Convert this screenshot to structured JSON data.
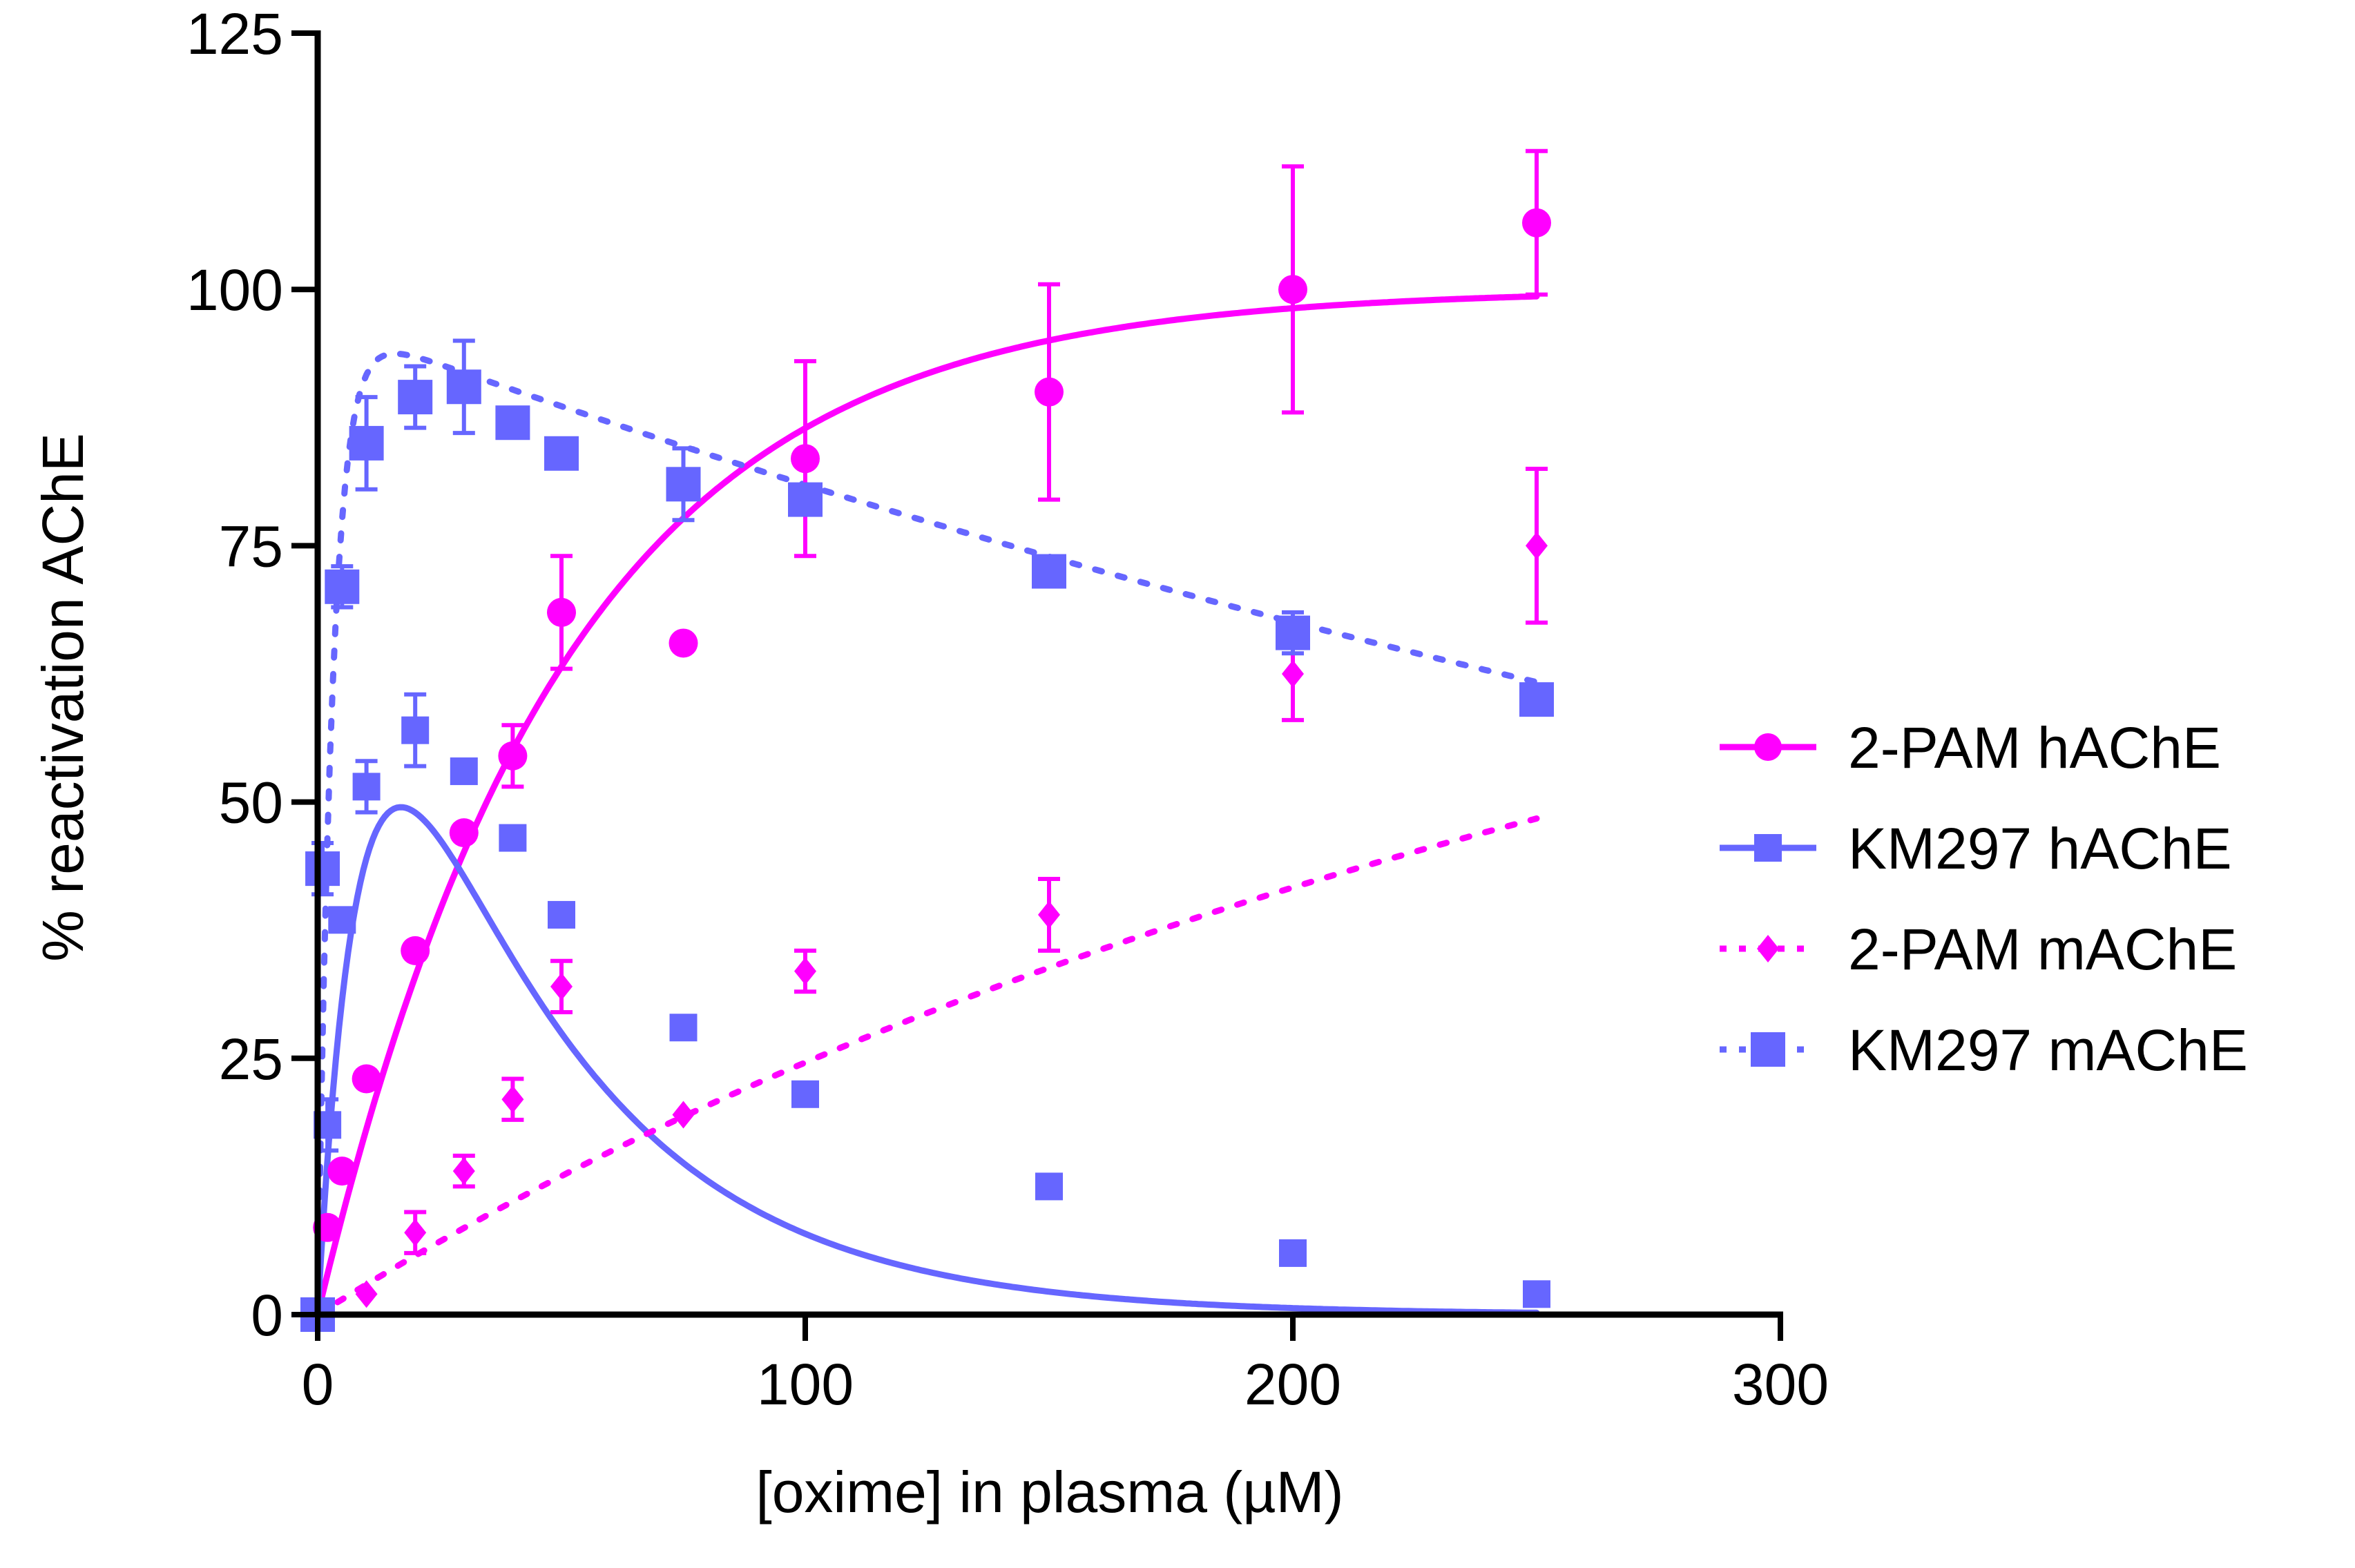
{
  "chart_data": {
    "type": "scatter",
    "title": "",
    "xlabel": "[oxime] in plasma (µM)",
    "ylabel": "% reactivation AChE",
    "xlim": [
      0,
      300
    ],
    "ylim": [
      0,
      125
    ],
    "xticks": [
      0,
      100,
      200,
      300
    ],
    "yticks": [
      0,
      25,
      50,
      75,
      100,
      125
    ],
    "grid": false,
    "legend_position": "right",
    "colors": {
      "magenta": "#ff00ff",
      "blue": "#6666ff"
    },
    "series": [
      {
        "name": "2-PAM hAChE",
        "marker": "circle",
        "line": "solid",
        "color": "#ff00ff",
        "points": [
          {
            "x": 0,
            "y": 0
          },
          {
            "x": 2,
            "y": 8.5
          },
          {
            "x": 5,
            "y": 14
          },
          {
            "x": 10,
            "y": 23
          },
          {
            "x": 20,
            "y": 35.5
          },
          {
            "x": 30,
            "y": 47
          },
          {
            "x": 40,
            "y": 54.5,
            "err": 3
          },
          {
            "x": 50,
            "y": 68.5,
            "err": 5.5
          },
          {
            "x": 75,
            "y": 65.5
          },
          {
            "x": 100,
            "y": 83.5,
            "err": 9.5
          },
          {
            "x": 150,
            "y": 90,
            "err": 10.5
          },
          {
            "x": 200,
            "y": 100,
            "err": 12
          },
          {
            "x": 250,
            "y": 106.5,
            "err": 7
          }
        ],
        "fit": {
          "model": "saturation",
          "ymax": 100,
          "k": 0.02,
          "xmin": 0,
          "xmax": 250
        }
      },
      {
        "name": "KM297 hAChE",
        "marker": "square",
        "line": "solid",
        "color": "#6666ff",
        "points": [
          {
            "x": 0,
            "y": 0
          },
          {
            "x": 1,
            "y": 43.5
          },
          {
            "x": 2,
            "y": 18.5,
            "err": 2.5
          },
          {
            "x": 5,
            "y": 38.5
          },
          {
            "x": 10,
            "y": 51.5,
            "err": 2.5
          },
          {
            "x": 20,
            "y": 57,
            "err": 3.5
          },
          {
            "x": 30,
            "y": 53
          },
          {
            "x": 40,
            "y": 46.5
          },
          {
            "x": 50,
            "y": 39
          },
          {
            "x": 75,
            "y": 28
          },
          {
            "x": 100,
            "y": 21.5
          },
          {
            "x": 150,
            "y": 12.5
          },
          {
            "x": 200,
            "y": 6
          },
          {
            "x": 250,
            "y": 2
          }
        ],
        "fit": {
          "model": "rise-decay",
          "amp": 98,
          "kd": 0.0252,
          "ka": 0.113,
          "xmin": 0,
          "xmax": 250
        }
      },
      {
        "name": "2-PAM mAChE",
        "marker": "diamond",
        "line": "dotted",
        "color": "#ff00ff",
        "points": [
          {
            "x": 0,
            "y": 0
          },
          {
            "x": 10,
            "y": 2
          },
          {
            "x": 20,
            "y": 8,
            "err": 2
          },
          {
            "x": 30,
            "y": 14,
            "err": 1.5
          },
          {
            "x": 40,
            "y": 21,
            "err": 2
          },
          {
            "x": 50,
            "y": 32,
            "err": 2.5
          },
          {
            "x": 75,
            "y": 19.5
          },
          {
            "x": 100,
            "y": 33.5,
            "err": 2
          },
          {
            "x": 150,
            "y": 39,
            "err": 3.5
          },
          {
            "x": 200,
            "y": 62.5,
            "err": 4.5
          },
          {
            "x": 250,
            "y": 75,
            "err": 7.5
          }
        ],
        "fit": {
          "model": "linear-sat",
          "a": 0.3,
          "b": 0.0022,
          "xmin": 0,
          "xmax": 250
        }
      },
      {
        "name": "KM297 mAChE",
        "marker": "square",
        "line": "dotted",
        "color": "#6666ff",
        "points": [
          {
            "x": 0,
            "y": 0
          },
          {
            "x": 1,
            "y": 43.5,
            "err": 2.5
          },
          {
            "x": 5,
            "y": 71,
            "err": 2
          },
          {
            "x": 10,
            "y": 85,
            "err": 4.5
          },
          {
            "x": 20,
            "y": 89.5,
            "err": 3
          },
          {
            "x": 30,
            "y": 90.5,
            "err": 4.5
          },
          {
            "x": 40,
            "y": 87
          },
          {
            "x": 50,
            "y": 84
          },
          {
            "x": 75,
            "y": 81,
            "err": 3.5
          },
          {
            "x": 100,
            "y": 79.5,
            "err": 1
          },
          {
            "x": 150,
            "y": 72.5
          },
          {
            "x": 200,
            "y": 66.5,
            "err": 2
          },
          {
            "x": 250,
            "y": 60
          }
        ],
        "fit": {
          "model": "rise-decay",
          "amp": 97,
          "kd": 0.00181,
          "ka": 0.33,
          "xmin": 0,
          "xmax": 250
        }
      }
    ]
  }
}
